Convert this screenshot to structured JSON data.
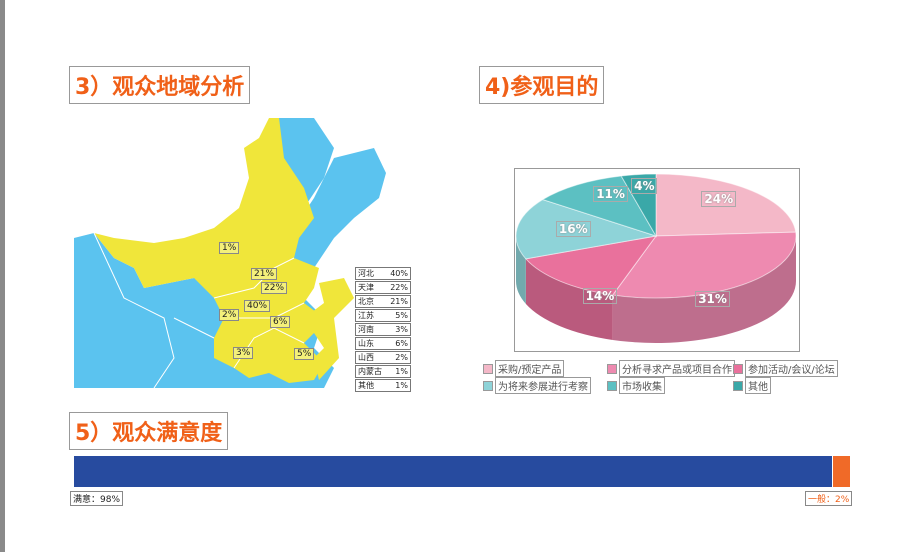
{
  "sections": {
    "region_title": "3）观众地域分析",
    "purpose_title": "4)参观目的",
    "satisfaction_title": "5）观众满意度"
  },
  "chart_data": [
    {
      "type": "table",
      "title": "3）观众地域分析",
      "rows": [
        [
          "河北",
          "40%"
        ],
        [
          "天津",
          "22%"
        ],
        [
          "北京",
          "21%"
        ],
        [
          "江苏",
          "5%"
        ],
        [
          "河南",
          "3%"
        ],
        [
          "山东",
          "6%"
        ],
        [
          "山西",
          "2%"
        ],
        [
          "内蒙古",
          "1%"
        ],
        [
          "其他",
          "1%"
        ]
      ],
      "map_labels": [
        "1%",
        "21%",
        "22%",
        "40%",
        "2%",
        "6%",
        "3%",
        "5%"
      ],
      "colors": {
        "highlight": "#f0e63a",
        "other": "#5bc3ef"
      }
    },
    {
      "type": "pie",
      "title": "4)参观目的",
      "categories": [
        "采购/预定产品",
        "分析寻求产品或项目合作",
        "参加活动/会议/论坛",
        "为将来参展进行考察",
        "市场收集",
        "其他"
      ],
      "values": [
        24,
        31,
        14,
        16,
        11,
        4
      ],
      "labels": [
        "24%",
        "31%",
        "14%",
        "16%",
        "11%",
        "4%"
      ],
      "colors": [
        "#f4b8c8",
        "#ee8ab0",
        "#e9719c",
        "#8ed3d8",
        "#5cc0c2",
        "#3aa8a8"
      ],
      "legend": "bottom"
    },
    {
      "type": "bar",
      "title": "5）观众满意度",
      "categories": [
        "满意",
        "一般"
      ],
      "values": [
        98,
        2
      ],
      "labels": [
        "满意：98%",
        "一般：2%"
      ],
      "colors": [
        "#274b9f",
        "#f06a28"
      ]
    }
  ]
}
